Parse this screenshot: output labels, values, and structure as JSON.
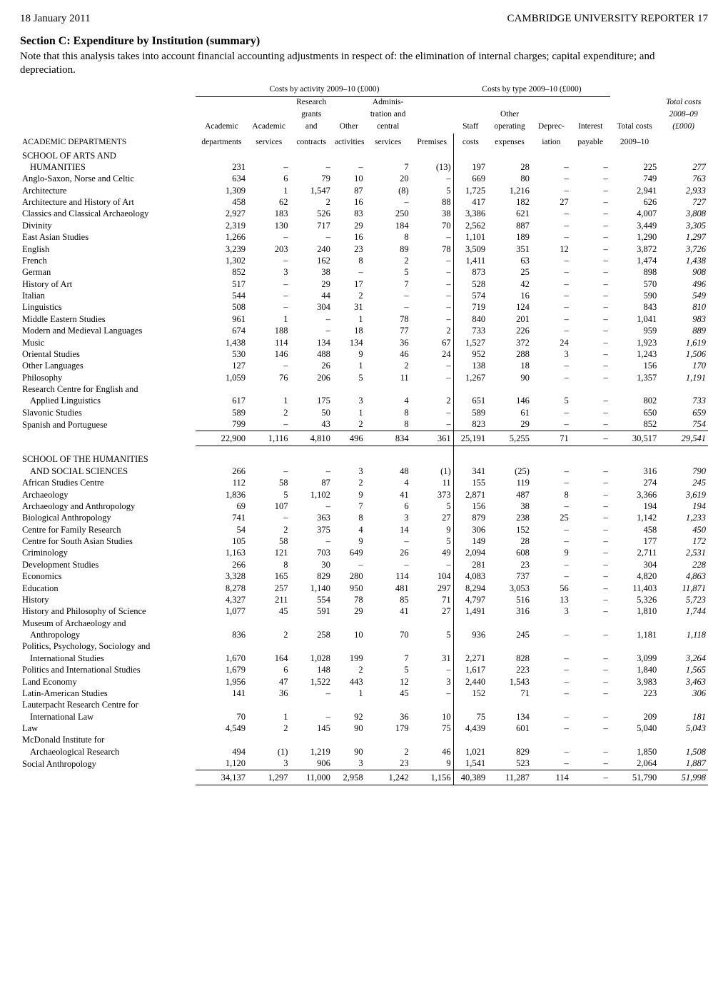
{
  "header": {
    "date": "18 January 2011",
    "right": "CAMBRIDGE UNIVERSITY REPORTER  17"
  },
  "section_title": "Section C: Expenditure by Institution (summary)",
  "note": "Note that this analysis takes into account financial accounting adjustments in respect of: the elimination of internal charges; capital expenditure; and depreciation.",
  "group_headers": {
    "activity": "Costs by activity 2009–10 (£000)",
    "type": "Costs by type 2009–10 (£000)"
  },
  "col_heads": {
    "dept": "ACADEMIC DEPARTMENTS",
    "c1": "Academic\ndepartments",
    "c2": "Academic\nservices",
    "c3": "Research\ngrants\nand\ncontracts",
    "c4": "Other\nactivities",
    "c5": "Adminis-\ntration and\ncentral\nservices",
    "c6": "Premises",
    "c7": "Staff\ncosts",
    "c8": "Other\noperating\nexpenses",
    "c9": "Deprec-\niation",
    "c10": "Interest\npayable",
    "c11": "Total costs\n2009–10",
    "c12": "Total costs\n2008–09\n(£000)"
  },
  "blocks": [
    {
      "title": "SCHOOL OF ARTS AND",
      "rows": [
        {
          "n": "HUMANITIES",
          "indent": true,
          "v": [
            "231",
            "–",
            "–",
            "–",
            "7",
            "(13)",
            "197",
            "28",
            "–",
            "–",
            "225",
            "277"
          ]
        },
        {
          "n": "Anglo-Saxon, Norse and Celtic",
          "v": [
            "634",
            "6",
            "79",
            "10",
            "20",
            "–",
            "669",
            "80",
            "–",
            "–",
            "749",
            "763"
          ]
        },
        {
          "n": "Architecture",
          "v": [
            "1,309",
            "1",
            "1,547",
            "87",
            "(8)",
            "5",
            "1,725",
            "1,216",
            "–",
            "–",
            "2,941",
            "2,933"
          ]
        },
        {
          "n": "Architecture and History of Art",
          "v": [
            "458",
            "62",
            "2",
            "16",
            "–",
            "88",
            "417",
            "182",
            "27",
            "–",
            "626",
            "727"
          ]
        },
        {
          "n": "Classics and Classical Archaeology",
          "v": [
            "2,927",
            "183",
            "526",
            "83",
            "250",
            "38",
            "3,386",
            "621",
            "–",
            "–",
            "4,007",
            "3,808"
          ]
        },
        {
          "n": "Divinity",
          "v": [
            "2,319",
            "130",
            "717",
            "29",
            "184",
            "70",
            "2,562",
            "887",
            "–",
            "–",
            "3,449",
            "3,305"
          ]
        },
        {
          "n": "East Asian Studies",
          "v": [
            "1,266",
            "–",
            "–",
            "16",
            "8",
            "–",
            "1,101",
            "189",
            "–",
            "–",
            "1,290",
            "1,297"
          ]
        },
        {
          "n": "English",
          "v": [
            "3,239",
            "203",
            "240",
            "23",
            "89",
            "78",
            "3,509",
            "351",
            "12",
            "–",
            "3,872",
            "3,726"
          ]
        },
        {
          "n": "French",
          "v": [
            "1,302",
            "–",
            "162",
            "8",
            "2",
            "–",
            "1,411",
            "63",
            "–",
            "–",
            "1,474",
            "1,438"
          ]
        },
        {
          "n": "German",
          "v": [
            "852",
            "3",
            "38",
            "–",
            "5",
            "–",
            "873",
            "25",
            "–",
            "–",
            "898",
            "908"
          ]
        },
        {
          "n": "History of Art",
          "v": [
            "517",
            "–",
            "29",
            "17",
            "7",
            "–",
            "528",
            "42",
            "–",
            "–",
            "570",
            "496"
          ]
        },
        {
          "n": "Italian",
          "v": [
            "544",
            "–",
            "44",
            "2",
            "–",
            "–",
            "574",
            "16",
            "–",
            "–",
            "590",
            "549"
          ]
        },
        {
          "n": "Linguistics",
          "v": [
            "508",
            "–",
            "304",
            "31",
            "–",
            "–",
            "719",
            "124",
            "–",
            "–",
            "843",
            "810"
          ]
        },
        {
          "n": "Middle Eastern Studies",
          "v": [
            "961",
            "1",
            "–",
            "1",
            "78",
            "–",
            "840",
            "201",
            "–",
            "–",
            "1,041",
            "983"
          ]
        },
        {
          "n": "Modern and Medieval Languages",
          "v": [
            "674",
            "188",
            "–",
            "18",
            "77",
            "2",
            "733",
            "226",
            "–",
            "–",
            "959",
            "889"
          ]
        },
        {
          "n": "Music",
          "v": [
            "1,438",
            "114",
            "134",
            "134",
            "36",
            "67",
            "1,527",
            "372",
            "24",
            "–",
            "1,923",
            "1,619"
          ]
        },
        {
          "n": "Oriental Studies",
          "v": [
            "530",
            "146",
            "488",
            "9",
            "46",
            "24",
            "952",
            "288",
            "3",
            "–",
            "1,243",
            "1,506"
          ]
        },
        {
          "n": "Other Languages",
          "v": [
            "127",
            "–",
            "26",
            "1",
            "2",
            "–",
            "138",
            "18",
            "–",
            "–",
            "156",
            "170"
          ]
        },
        {
          "n": "Philosophy",
          "v": [
            "1,059",
            "76",
            "206",
            "5",
            "11",
            "–",
            "1,267",
            "90",
            "–",
            "–",
            "1,357",
            "1,191"
          ]
        },
        {
          "n": "Research Centre for English and",
          "v": [
            "",
            "",
            "",
            "",
            "",
            "",
            "",
            "",
            "",
            "",
            "",
            ""
          ],
          "nobox": true
        },
        {
          "n": "Applied Linguistics",
          "indent": true,
          "v": [
            "617",
            "1",
            "175",
            "3",
            "4",
            "2",
            "651",
            "146",
            "5",
            "–",
            "802",
            "733"
          ]
        },
        {
          "n": "Slavonic Studies",
          "v": [
            "589",
            "2",
            "50",
            "1",
            "8",
            "–",
            "589",
            "61",
            "–",
            "–",
            "650",
            "659"
          ]
        },
        {
          "n": "Spanish and Portuguese",
          "v": [
            "799",
            "–",
            "43",
            "2",
            "8",
            "–",
            "823",
            "29",
            "–",
            "–",
            "852",
            "754"
          ]
        }
      ],
      "total": [
        "22,900",
        "1,116",
        "4,810",
        "496",
        "834",
        "361",
        "25,191",
        "5,255",
        "71",
        "–",
        "30,517",
        "29,541"
      ]
    },
    {
      "title": "SCHOOL OF THE HUMANITIES",
      "rows": [
        {
          "n": "AND SOCIAL SCIENCES",
          "indent": true,
          "v": [
            "266",
            "–",
            "–",
            "3",
            "48",
            "(1)",
            "341",
            "(25)",
            "–",
            "–",
            "316",
            "790"
          ]
        },
        {
          "n": "African Studies Centre",
          "v": [
            "112",
            "58",
            "87",
            "2",
            "4",
            "11",
            "155",
            "119",
            "–",
            "–",
            "274",
            "245"
          ]
        },
        {
          "n": "Archaeology",
          "v": [
            "1,836",
            "5",
            "1,102",
            "9",
            "41",
            "373",
            "2,871",
            "487",
            "8",
            "–",
            "3,366",
            "3,619"
          ]
        },
        {
          "n": "Archaeology and Anthropology",
          "v": [
            "69",
            "107",
            "–",
            "7",
            "6",
            "5",
            "156",
            "38",
            "–",
            "–",
            "194",
            "194"
          ]
        },
        {
          "n": "Biological Anthropology",
          "v": [
            "741",
            "–",
            "363",
            "8",
            "3",
            "27",
            "879",
            "238",
            "25",
            "–",
            "1,142",
            "1,233"
          ]
        },
        {
          "n": "Centre for Family Research",
          "v": [
            "54",
            "2",
            "375",
            "4",
            "14",
            "9",
            "306",
            "152",
            "–",
            "–",
            "458",
            "450"
          ]
        },
        {
          "n": "Centre for South Asian Studies",
          "v": [
            "105",
            "58",
            "–",
            "9",
            "–",
            "5",
            "149",
            "28",
            "–",
            "–",
            "177",
            "172"
          ]
        },
        {
          "n": "Criminology",
          "v": [
            "1,163",
            "121",
            "703",
            "649",
            "26",
            "49",
            "2,094",
            "608",
            "9",
            "–",
            "2,711",
            "2,531"
          ]
        },
        {
          "n": "Development Studies",
          "v": [
            "266",
            "8",
            "30",
            "–",
            "–",
            "–",
            "281",
            "23",
            "–",
            "–",
            "304",
            "228"
          ]
        },
        {
          "n": "Economics",
          "v": [
            "3,328",
            "165",
            "829",
            "280",
            "114",
            "104",
            "4,083",
            "737",
            "–",
            "–",
            "4,820",
            "4,863"
          ]
        },
        {
          "n": "Education",
          "v": [
            "8,278",
            "257",
            "1,140",
            "950",
            "481",
            "297",
            "8,294",
            "3,053",
            "56",
            "–",
            "11,403",
            "11,871"
          ]
        },
        {
          "n": "History",
          "v": [
            "4,327",
            "211",
            "554",
            "78",
            "85",
            "71",
            "4,797",
            "516",
            "13",
            "–",
            "5,326",
            "5,723"
          ]
        },
        {
          "n": "History and Philosophy of Science",
          "v": [
            "1,077",
            "45",
            "591",
            "29",
            "41",
            "27",
            "1,491",
            "316",
            "3",
            "–",
            "1,810",
            "1,744"
          ]
        },
        {
          "n": "Museum of Archaeology and",
          "v": [
            "",
            "",
            "",
            "",
            "",
            "",
            "",
            "",
            "",
            "",
            "",
            ""
          ],
          "nobox": true
        },
        {
          "n": "Anthropology",
          "indent": true,
          "v": [
            "836",
            "2",
            "258",
            "10",
            "70",
            "5",
            "936",
            "245",
            "–",
            "–",
            "1,181",
            "1,118"
          ]
        },
        {
          "n": "Politics, Psychology, Sociology and",
          "v": [
            "",
            "",
            "",
            "",
            "",
            "",
            "",
            "",
            "",
            "",
            "",
            ""
          ],
          "nobox": true
        },
        {
          "n": "International Studies",
          "indent": true,
          "v": [
            "1,670",
            "164",
            "1,028",
            "199",
            "7",
            "31",
            "2,271",
            "828",
            "–",
            "–",
            "3,099",
            "3,264"
          ]
        },
        {
          "n": "Politics and International Studies",
          "v": [
            "1,679",
            "6",
            "148",
            "2",
            "5",
            "–",
            "1,617",
            "223",
            "–",
            "–",
            "1,840",
            "1,565"
          ]
        },
        {
          "n": "Land Economy",
          "v": [
            "1,956",
            "47",
            "1,522",
            "443",
            "12",
            "3",
            "2,440",
            "1,543",
            "–",
            "–",
            "3,983",
            "3,463"
          ]
        },
        {
          "n": "Latin-American Studies",
          "v": [
            "141",
            "36",
            "–",
            "1",
            "45",
            "–",
            "152",
            "71",
            "–",
            "–",
            "223",
            "306"
          ]
        },
        {
          "n": "Lauterpacht Research Centre for",
          "v": [
            "",
            "",
            "",
            "",
            "",
            "",
            "",
            "",
            "",
            "",
            "",
            ""
          ],
          "nobox": true
        },
        {
          "n": "International Law",
          "indent": true,
          "v": [
            "70",
            "1",
            "–",
            "92",
            "36",
            "10",
            "75",
            "134",
            "–",
            "–",
            "209",
            "181"
          ]
        },
        {
          "n": "Law",
          "v": [
            "4,549",
            "2",
            "145",
            "90",
            "179",
            "75",
            "4,439",
            "601",
            "–",
            "–",
            "5,040",
            "5,043"
          ]
        },
        {
          "n": "McDonald Institute for",
          "v": [
            "",
            "",
            "",
            "",
            "",
            "",
            "",
            "",
            "",
            "",
            "",
            ""
          ],
          "nobox": true
        },
        {
          "n": "Archaeological Research",
          "indent": true,
          "v": [
            "494",
            "(1)",
            "1,219",
            "90",
            "2",
            "46",
            "1,021",
            "829",
            "–",
            "–",
            "1,850",
            "1,508"
          ]
        },
        {
          "n": "Social Anthropology",
          "v": [
            "1,120",
            "3",
            "906",
            "3",
            "23",
            "9",
            "1,541",
            "523",
            "–",
            "–",
            "2,064",
            "1,887"
          ]
        }
      ],
      "total": [
        "34,137",
        "1,297",
        "11,000",
        "2,958",
        "1,242",
        "1,156",
        "40,389",
        "11,287",
        "114",
        "–",
        "51,790",
        "51,998"
      ]
    }
  ]
}
